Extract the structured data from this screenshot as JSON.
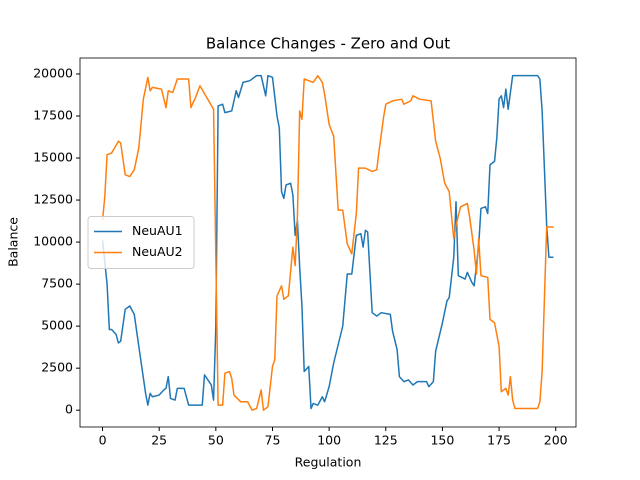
{
  "chart_data": {
    "type": "line",
    "title": "Balance Changes - Zero and Out",
    "xlabel": "Regulation",
    "ylabel": "Balance",
    "xlim": [
      -9.95,
      208.95
    ],
    "ylim": [
      -1000,
      20950
    ],
    "xticks": [
      0,
      25,
      50,
      75,
      100,
      125,
      150,
      175,
      200
    ],
    "yticks": [
      0,
      2500,
      5000,
      7500,
      10000,
      12500,
      15000,
      17500,
      20000
    ],
    "grid": false,
    "legend": "center left",
    "series": [
      {
        "name": "NeuAU1",
        "color": "#1f77b4",
        "x": [
          0,
          2,
          3,
          4,
          6,
          7,
          8,
          10,
          12,
          14,
          16,
          19,
          20,
          21,
          22,
          25,
          27,
          28,
          29,
          30,
          32,
          33,
          36,
          38,
          44,
          45,
          48,
          49,
          50,
          51,
          53,
          54,
          57,
          59,
          60,
          62,
          65,
          68,
          70,
          72,
          73,
          75,
          77,
          78,
          79,
          80,
          81,
          83,
          84,
          85,
          86,
          87,
          88,
          89,
          91,
          92,
          93,
          95,
          97,
          98,
          100,
          102,
          104,
          106,
          108,
          110,
          112,
          114,
          115,
          116,
          117,
          119,
          121,
          123,
          127,
          128,
          130,
          131,
          133,
          135,
          137,
          139,
          143,
          144,
          146,
          147,
          150,
          152,
          153,
          155,
          156,
          157,
          160,
          161,
          163,
          164,
          166,
          167,
          169,
          170,
          171,
          173,
          174,
          175,
          176,
          177,
          178,
          179,
          181,
          192,
          193,
          194,
          196,
          197,
          199
        ],
        "values": [
          10100,
          7500,
          4800,
          4800,
          4500,
          4000,
          4100,
          6000,
          6200,
          5700,
          3800,
          1000,
          300,
          1000,
          800,
          900,
          1200,
          1300,
          2000,
          700,
          600,
          1300,
          1300,
          300,
          300,
          2100,
          1500,
          600,
          5000,
          18100,
          18200,
          17700,
          17800,
          19000,
          18600,
          19500,
          19600,
          19900,
          19900,
          18700,
          19900,
          19800,
          17500,
          16800,
          13000,
          12600,
          13400,
          13500,
          12800,
          10400,
          11300,
          8500,
          6200,
          2300,
          2600,
          100,
          400,
          300,
          800,
          500,
          1400,
          2800,
          3900,
          5000,
          8100,
          8100,
          10400,
          10500,
          9700,
          10700,
          10600,
          5800,
          5600,
          5800,
          5700,
          4700,
          3600,
          2000,
          1700,
          1800,
          1500,
          1700,
          1700,
          1400,
          1700,
          3500,
          5200,
          6500,
          6700,
          9100,
          12400,
          8000,
          7800,
          8200,
          7600,
          7400,
          9800,
          12000,
          12100,
          11700,
          14600,
          14800,
          16200,
          18500,
          18700,
          18000,
          19100,
          17900,
          19900,
          19900,
          19700,
          17800,
          11000,
          9100,
          9100
        ]
      },
      {
        "name": "NeuAU2",
        "color": "#ff7f0e",
        "x": [
          0,
          1,
          2,
          4,
          7,
          8,
          10,
          12,
          14,
          16,
          18,
          20,
          21,
          22,
          26,
          28,
          29,
          31,
          33,
          38,
          39,
          41,
          43,
          49,
          51,
          53,
          54,
          56,
          57,
          58,
          61,
          64,
          66,
          68,
          70,
          71,
          73,
          75,
          76,
          77,
          79,
          80,
          82,
          84,
          85,
          86,
          87,
          88,
          89,
          91,
          93,
          95,
          97,
          98,
          100,
          102,
          104,
          106,
          108,
          110,
          112,
          113,
          116,
          119,
          121,
          122,
          124,
          125,
          128,
          132,
          133,
          136,
          137,
          140,
          145,
          147,
          149,
          151,
          153,
          155,
          156,
          158,
          161,
          162,
          164,
          165,
          166,
          167,
          170,
          171,
          173,
          175,
          176,
          178,
          179,
          180,
          181,
          182,
          192,
          193,
          194,
          196,
          199
        ],
        "values": [
          11300,
          12700,
          15200,
          15300,
          16000,
          15900,
          14000,
          13900,
          14300,
          15600,
          18500,
          19800,
          19000,
          19200,
          19100,
          18000,
          19000,
          18900,
          19700,
          19700,
          18000,
          18600,
          19300,
          17900,
          300,
          300,
          2200,
          2300,
          1900,
          900,
          500,
          500,
          0,
          100,
          1200,
          0,
          200,
          2600,
          3000,
          6800,
          7400,
          6600,
          6800,
          9700,
          8600,
          11500,
          17800,
          17300,
          19700,
          19600,
          19500,
          19900,
          19500,
          18800,
          17000,
          16300,
          11900,
          11900,
          9900,
          9300,
          11700,
          14400,
          14400,
          14200,
          14300,
          15400,
          17400,
          18200,
          18400,
          18500,
          18200,
          18400,
          18700,
          18500,
          18400,
          16000,
          15000,
          13500,
          13000,
          10200,
          11000,
          12100,
          12300,
          11500,
          9500,
          8100,
          10200,
          8000,
          7900,
          5400,
          5200,
          3800,
          1100,
          1300,
          900,
          2000,
          600,
          100,
          100,
          500,
          2300,
          10900,
          10900
        ]
      }
    ]
  }
}
